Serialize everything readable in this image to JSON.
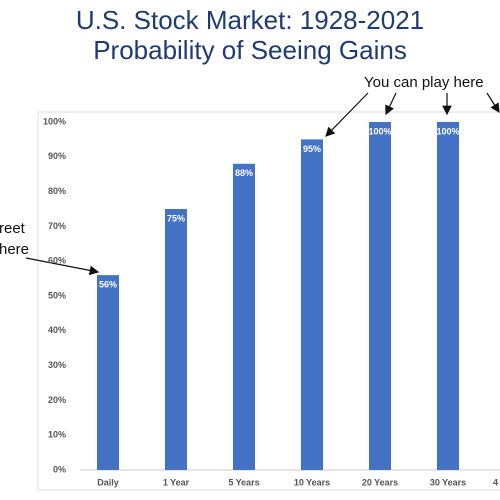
{
  "chart_data": {
    "type": "bar",
    "title": "U.S. Stock Market: 1928-2021",
    "subtitle": "Probability of Seeing Gains",
    "categories": [
      "Daily",
      "1 Year",
      "5 Years",
      "10 Years",
      "20 Years",
      "30 Years",
      "4"
    ],
    "values": [
      56,
      75,
      88,
      95,
      100,
      100,
      null
    ],
    "value_labels": [
      "56%",
      "75%",
      "88%",
      "95%",
      "100%",
      "100%",
      null
    ],
    "color": "#4472c4",
    "ylim": [
      0,
      100
    ],
    "yticks": [
      {
        "value": 0,
        "label": "0%"
      },
      {
        "value": 10,
        "label": "10%"
      },
      {
        "value": 20,
        "label": "20%"
      },
      {
        "value": 30,
        "label": "30%"
      },
      {
        "value": 40,
        "label": "40%"
      },
      {
        "value": 50,
        "label": "50%"
      },
      {
        "value": 60,
        "label": "60%"
      },
      {
        "value": 70,
        "label": "70%"
      },
      {
        "value": 80,
        "label": "80%"
      },
      {
        "value": 90,
        "label": "90%"
      },
      {
        "value": 100,
        "label": "100%"
      }
    ],
    "grid": false,
    "annotations": [
      {
        "text": "You can play here"
      },
      {
        "text": "reet"
      },
      {
        "text": "here"
      }
    ]
  }
}
